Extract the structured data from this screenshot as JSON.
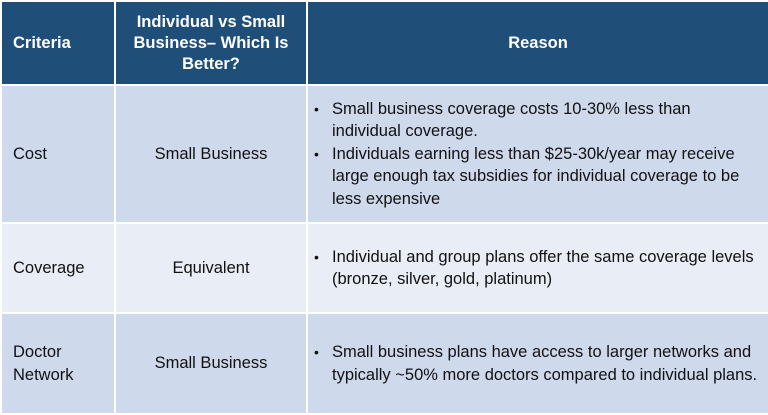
{
  "table": {
    "headers": {
      "criteria": "Criteria",
      "comparison": "Individual vs Small Business– Which Is Better?",
      "reason": "Reason"
    },
    "rows": [
      {
        "criteria": "Cost",
        "verdict": "Small Business",
        "reasons": [
          "Small business coverage costs 10-30% less than individual coverage.",
          "Individuals earning less than $25-30k/year may receive large enough tax subsidies for individual coverage to be less expensive"
        ]
      },
      {
        "criteria": "Coverage",
        "verdict": "Equivalent",
        "reasons": [
          "Individual and group plans offer the same coverage levels (bronze, silver, gold, platinum)"
        ]
      },
      {
        "criteria": "Doctor Network",
        "verdict": "Small Business",
        "reasons": [
          "Small business plans have access to larger networks and typically ~50% more doctors compared to individual plans."
        ]
      }
    ],
    "bullet_glyph": "•",
    "colors": {
      "header_bg": "#1f4e79",
      "row_dark": "#cfd9ec",
      "row_light": "#e9edf6"
    }
  }
}
